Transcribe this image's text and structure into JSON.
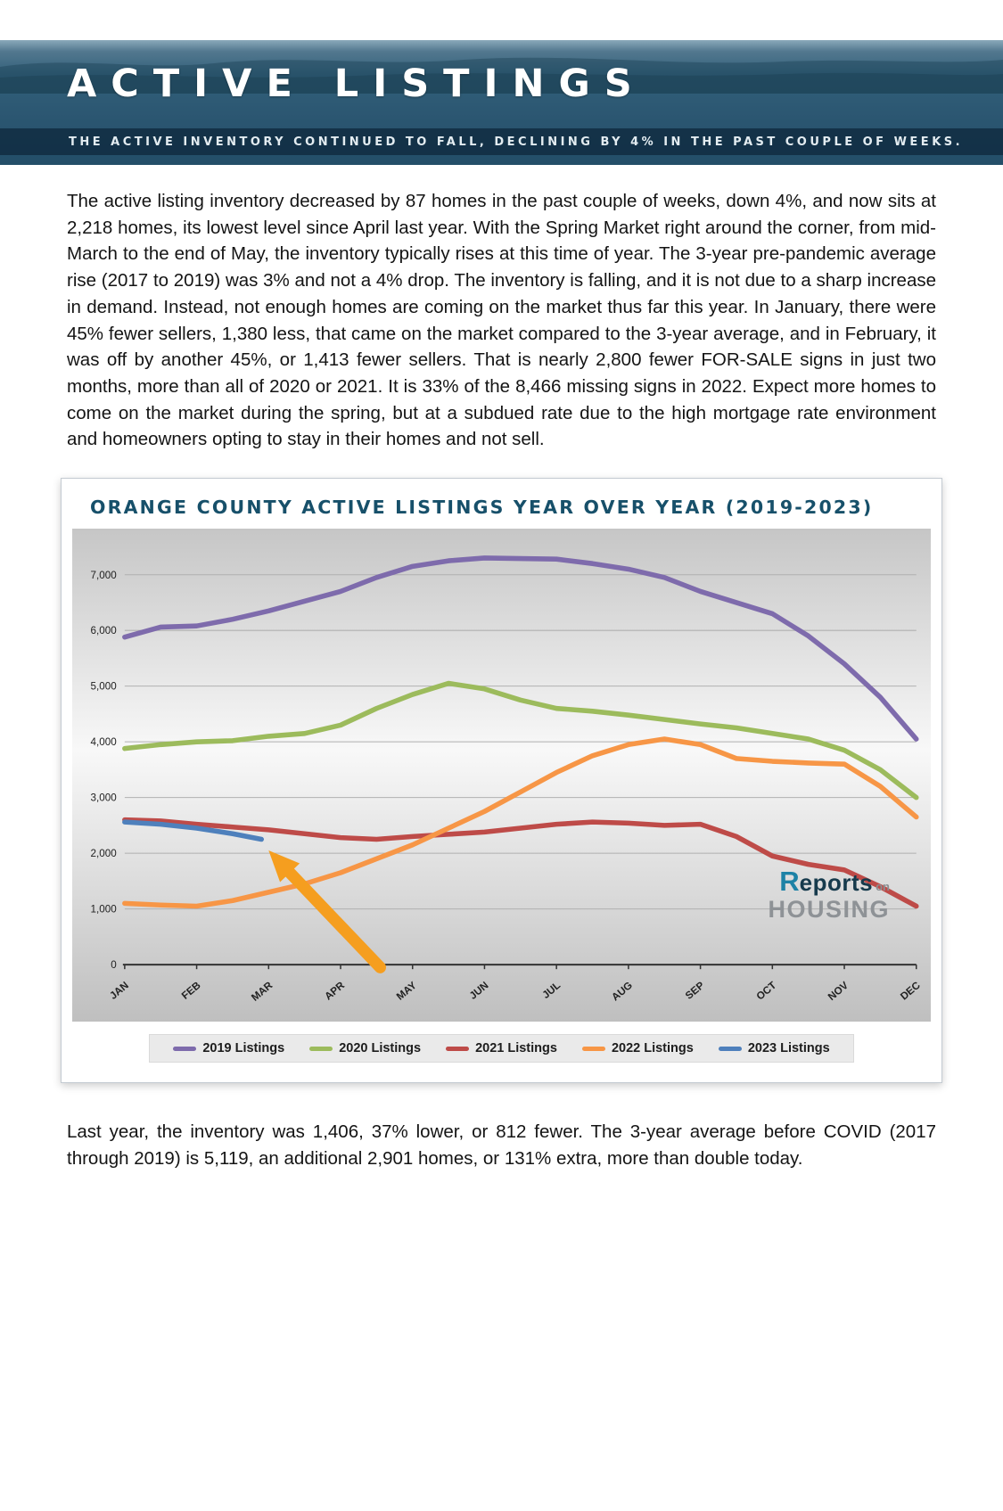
{
  "header": {
    "title": "ACTIVE LISTINGS",
    "subtitle": "THE ACTIVE INVENTORY CONTINUED TO FALL, DECLINING BY 4% IN THE PAST COUPLE OF WEEKS."
  },
  "intro_paragraph": "The active listing inventory decreased by 87 homes in the past couple of weeks, down 4%, and now sits at 2,218 homes, its lowest level since April last year. With the Spring Market right around the corner, from mid-March to the end of May, the inventory typically rises at this time of year. The 3-year pre-pandemic average rise (2017 to 2019) was 3% and not a 4% drop. The inventory is falling, and it is not due to a sharp increase in demand. Instead, not enough homes are coming on the market thus far this year. In January, there were 45% fewer sellers, 1,380 less, that came on the market compared to the 3-year average, and in February, it was off by another 45%, or 1,413 fewer sellers. That is nearly 2,800 fewer FOR-SALE signs in just two months, more than all of 2020 or 2021. It is 33% of the 8,466 missing signs in 2022. Expect more homes to come on the market during the spring, but at a subdued rate due to the high mortgage rate environment and homeowners opting to stay in their homes and not sell.",
  "closing_paragraph": "Last year, the inventory was 1,406, 37% lower, or 812 fewer. The 3-year average before COVID (2017 through 2019) is 5,119, an additional 2,901 homes, or 131% extra, more than double today.",
  "logo": {
    "r": "R",
    "reports": "eports",
    "on": "on",
    "housing": "HOUSING"
  },
  "chart_data": {
    "type": "line",
    "title": "ORANGE COUNTY ACTIVE LISTINGS YEAR OVER YEAR (2019-2023)",
    "categories": [
      "JAN",
      "FEB",
      "MAR",
      "APR",
      "MAY",
      "JUN",
      "JUL",
      "AUG",
      "SEP",
      "OCT",
      "NOV",
      "DEC"
    ],
    "ylim": [
      0,
      7600
    ],
    "yticks": [
      0,
      1000,
      2000,
      3000,
      4000,
      5000,
      6000,
      7000
    ],
    "ytick_labels": [
      "0",
      "1,000",
      "2,000",
      "3,000",
      "4,000",
      "5,000",
      "6,000",
      "7,000"
    ],
    "grid": true,
    "legend_position": "bottom",
    "series": [
      {
        "name": "2019 Listings",
        "color": "#7E6BAC",
        "x": [
          0,
          0.5,
          1,
          1.5,
          2,
          3,
          3.5,
          4,
          4.5,
          5,
          6,
          6.5,
          7,
          7.5,
          8,
          9,
          9.5,
          10,
          10.5,
          11
        ],
        "values": [
          5880,
          6060,
          6080,
          6200,
          6350,
          6700,
          6950,
          7150,
          7250,
          7300,
          7280,
          7200,
          7100,
          6950,
          6700,
          6300,
          5900,
          5400,
          4800,
          4050
        ]
      },
      {
        "name": "2020 Listings",
        "color": "#9CBB5C",
        "x": [
          0,
          0.5,
          1,
          1.5,
          2,
          2.5,
          3,
          3.5,
          4,
          4.5,
          5,
          5.5,
          6,
          6.5,
          7,
          7.5,
          8,
          8.5,
          9,
          9.5,
          10,
          10.5,
          11
        ],
        "values": [
          3880,
          3950,
          4000,
          4020,
          4100,
          4150,
          4300,
          4600,
          4850,
          5050,
          4950,
          4750,
          4600,
          4550,
          4480,
          4400,
          4320,
          4250,
          4150,
          4050,
          3850,
          3500,
          3000
        ]
      },
      {
        "name": "2021 Listings",
        "color": "#BE4B48",
        "x": [
          0,
          0.5,
          1,
          1.5,
          2,
          2.5,
          3,
          3.5,
          4,
          4.5,
          5,
          5.5,
          6,
          6.5,
          7,
          7.5,
          8,
          8.5,
          9,
          9.5,
          10,
          10.5,
          11
        ],
        "values": [
          2600,
          2580,
          2520,
          2470,
          2420,
          2350,
          2280,
          2250,
          2300,
          2340,
          2380,
          2450,
          2520,
          2560,
          2540,
          2500,
          2520,
          2300,
          1950,
          1800,
          1700,
          1400,
          1050
        ]
      },
      {
        "name": "2022 Listings",
        "color": "#F79646",
        "x": [
          0,
          0.5,
          1,
          1.5,
          2,
          2.5,
          3,
          3.5,
          4,
          4.5,
          5,
          5.5,
          6,
          6.5,
          7,
          7.5,
          8,
          8.5,
          9,
          9.5,
          10,
          10.5,
          11
        ],
        "values": [
          1100,
          1070,
          1050,
          1150,
          1300,
          1450,
          1650,
          1900,
          2150,
          2450,
          2750,
          3100,
          3450,
          3750,
          3950,
          4050,
          3950,
          3700,
          3650,
          3620,
          3600,
          3200,
          2650
        ]
      },
      {
        "name": "2023 Listings",
        "color": "#4E80BC",
        "x": [
          0,
          0.5,
          1,
          1.5,
          1.9
        ],
        "values": [
          2560,
          2520,
          2450,
          2350,
          2250
        ]
      }
    ],
    "annotation_arrow": {
      "from": [
        3.55,
        -50
      ],
      "to": [
        2.0,
        2050
      ],
      "color": "#F59E1F"
    }
  }
}
